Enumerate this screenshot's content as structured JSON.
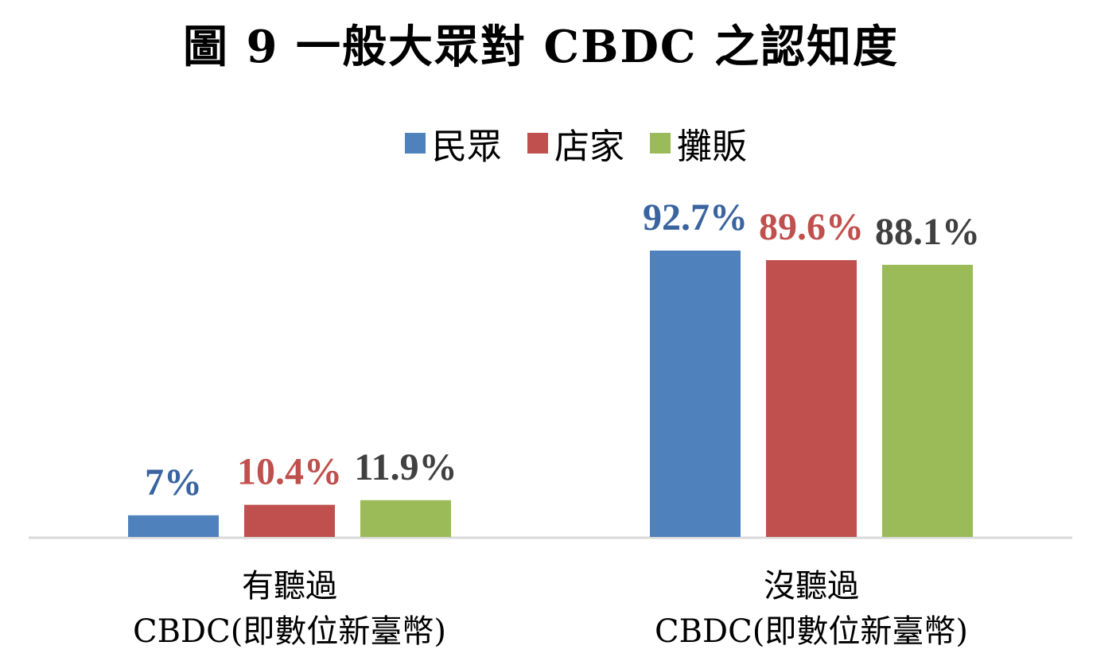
{
  "chart_data": {
    "type": "bar",
    "title": "圖 9  一般大眾對 CBDC 之認知度",
    "categories": [
      [
        "有聽過",
        "CBDC(即數位新臺幣)"
      ],
      [
        "沒聽過",
        "CBDC(即數位新臺幣)"
      ]
    ],
    "series": [
      {
        "name": "民眾",
        "color": "#4f81bd",
        "label_color": "#3a64a0",
        "values": [
          7,
          92.7
        ],
        "labels": [
          "7%",
          "92.7%"
        ]
      },
      {
        "name": "店家",
        "color": "#c0504d",
        "label_color": "#c0504d",
        "values": [
          10.4,
          89.6
        ],
        "labels": [
          "10.4%",
          "89.6%"
        ]
      },
      {
        "name": "攤販",
        "color": "#9bbb59",
        "label_color": "#404040",
        "values": [
          11.9,
          88.1
        ],
        "labels": [
          "11.9%",
          "88.1%"
        ]
      }
    ],
    "ylim": [
      0,
      100
    ],
    "grid": false,
    "legend": "top-center"
  }
}
